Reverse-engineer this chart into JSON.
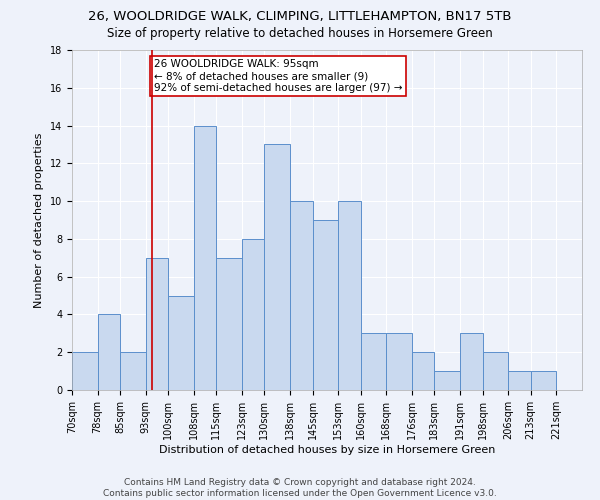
{
  "title": "26, WOOLDRIDGE WALK, CLIMPING, LITTLEHAMPTON, BN17 5TB",
  "subtitle": "Size of property relative to detached houses in Horsemere Green",
  "xlabel": "Distribution of detached houses by size in Horsemere Green",
  "ylabel": "Number of detached properties",
  "bin_labels": [
    "70sqm",
    "78sqm",
    "85sqm",
    "93sqm",
    "100sqm",
    "108sqm",
    "115sqm",
    "123sqm",
    "130sqm",
    "138sqm",
    "145sqm",
    "153sqm",
    "160sqm",
    "168sqm",
    "176sqm",
    "183sqm",
    "191sqm",
    "198sqm",
    "206sqm",
    "213sqm",
    "221sqm"
  ],
  "bin_edges": [
    70,
    78,
    85,
    93,
    100,
    108,
    115,
    123,
    130,
    138,
    145,
    153,
    160,
    168,
    176,
    183,
    191,
    198,
    206,
    213,
    221
  ],
  "counts": [
    2,
    4,
    2,
    7,
    5,
    14,
    7,
    8,
    13,
    10,
    9,
    10,
    3,
    3,
    2,
    1,
    3,
    2,
    1,
    1,
    0
  ],
  "bar_color": "#c9d9ef",
  "bar_edge_color": "#5b8fcc",
  "property_value": 95,
  "vline_color": "#cc0000",
  "annotation_text": "26 WOOLDRIDGE WALK: 95sqm\n← 8% of detached houses are smaller (9)\n92% of semi-detached houses are larger (97) →",
  "annotation_box_color": "#ffffff",
  "annotation_box_edge_color": "#cc0000",
  "ylim": [
    0,
    18
  ],
  "yticks": [
    0,
    2,
    4,
    6,
    8,
    10,
    12,
    14,
    16,
    18
  ],
  "footer_line1": "Contains HM Land Registry data © Crown copyright and database right 2024.",
  "footer_line2": "Contains public sector information licensed under the Open Government Licence v3.0.",
  "background_color": "#eef2fa",
  "grid_color": "#ffffff",
  "title_fontsize": 9.5,
  "subtitle_fontsize": 8.5,
  "axis_label_fontsize": 8,
  "tick_fontsize": 7,
  "annotation_fontsize": 7.5,
  "footer_fontsize": 6.5
}
